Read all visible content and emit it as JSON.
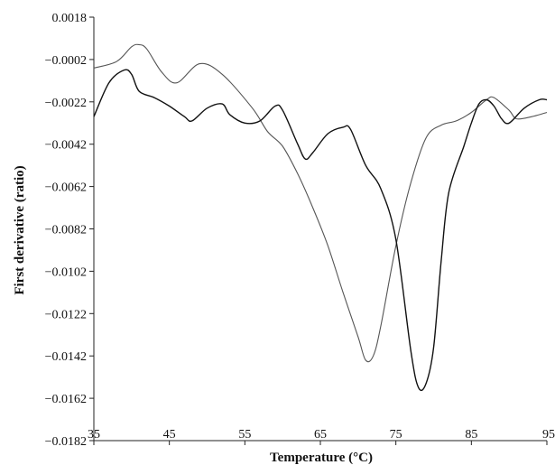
{
  "chart_data": {
    "type": "line",
    "title": "",
    "xlabel": "Temperature (°C)",
    "ylabel": "First derivative (ratio)",
    "xlim": [
      35,
      95
    ],
    "ylim": [
      -0.0182,
      0.0018
    ],
    "xticks": [
      35,
      45,
      55,
      65,
      75,
      85,
      95
    ],
    "yticks": [
      0.0018,
      -0.0002,
      -0.0022,
      -0.0042,
      -0.0062,
      -0.0082,
      -0.0102,
      -0.0122,
      -0.0142,
      -0.0162,
      -0.0182
    ],
    "ytick_labels": [
      "0.0018",
      "−0.0002",
      "−0.0022",
      "−0.0042",
      "−0.0062",
      "−0.0082",
      "−0.0102",
      "−0.0122",
      "−0.0142",
      "−0.0162",
      "−0.0182"
    ],
    "grid": false,
    "legend": "none",
    "series": [
      {
        "color": "#555555",
        "points": [
          [
            35,
            -0.0006
          ],
          [
            38,
            -0.0003
          ],
          [
            40,
            0.0004
          ],
          [
            41,
            0.0005
          ],
          [
            42,
            0.0003
          ],
          [
            44,
            -0.0008
          ],
          [
            46,
            -0.0013
          ],
          [
            49,
            -0.0004
          ],
          [
            52,
            -0.0009
          ],
          [
            56,
            -0.0025
          ],
          [
            58,
            -0.0036
          ],
          [
            60,
            -0.0043
          ],
          [
            62,
            -0.0056
          ],
          [
            64,
            -0.0072
          ],
          [
            66,
            -0.009
          ],
          [
            68,
            -0.0112
          ],
          [
            70,
            -0.0133
          ],
          [
            71,
            -0.0144
          ],
          [
            72,
            -0.0142
          ],
          [
            73,
            -0.0128
          ],
          [
            75,
            -0.009
          ],
          [
            77,
            -0.006
          ],
          [
            79,
            -0.0039
          ],
          [
            81,
            -0.0033
          ],
          [
            83,
            -0.0031
          ],
          [
            85,
            -0.0027
          ],
          [
            87,
            -0.0021
          ],
          [
            88,
            -0.002
          ],
          [
            90,
            -0.0026
          ],
          [
            91,
            -0.003
          ],
          [
            93,
            -0.0029
          ],
          [
            95,
            -0.0027
          ]
        ]
      },
      {
        "color": "#111111",
        "points": [
          [
            35,
            -0.0029
          ],
          [
            37,
            -0.0013
          ],
          [
            39,
            -0.0007
          ],
          [
            40,
            -0.0009
          ],
          [
            41,
            -0.0017
          ],
          [
            43,
            -0.002
          ],
          [
            45,
            -0.0024
          ],
          [
            47,
            -0.0029
          ],
          [
            48,
            -0.0031
          ],
          [
            50,
            -0.0025
          ],
          [
            52,
            -0.0023
          ],
          [
            53,
            -0.0028
          ],
          [
            55,
            -0.0032
          ],
          [
            57,
            -0.0031
          ],
          [
            59,
            -0.0024
          ],
          [
            60,
            -0.0026
          ],
          [
            62,
            -0.0042
          ],
          [
            63,
            -0.0049
          ],
          [
            64,
            -0.0046
          ],
          [
            66,
            -0.0037
          ],
          [
            68,
            -0.0034
          ],
          [
            69,
            -0.0035
          ],
          [
            71,
            -0.0052
          ],
          [
            73,
            -0.0063
          ],
          [
            75,
            -0.0087
          ],
          [
            77,
            -0.014
          ],
          [
            78,
            -0.0157
          ],
          [
            79,
            -0.0155
          ],
          [
            80,
            -0.0138
          ],
          [
            81,
            -0.0097
          ],
          [
            82,
            -0.0065
          ],
          [
            84,
            -0.0043
          ],
          [
            85,
            -0.0032
          ],
          [
            86,
            -0.0023
          ],
          [
            87,
            -0.0021
          ],
          [
            88,
            -0.0024
          ],
          [
            89,
            -0.003
          ],
          [
            90,
            -0.0032
          ],
          [
            92,
            -0.0025
          ],
          [
            94,
            -0.0021
          ],
          [
            95,
            -0.0021
          ]
        ]
      }
    ]
  }
}
